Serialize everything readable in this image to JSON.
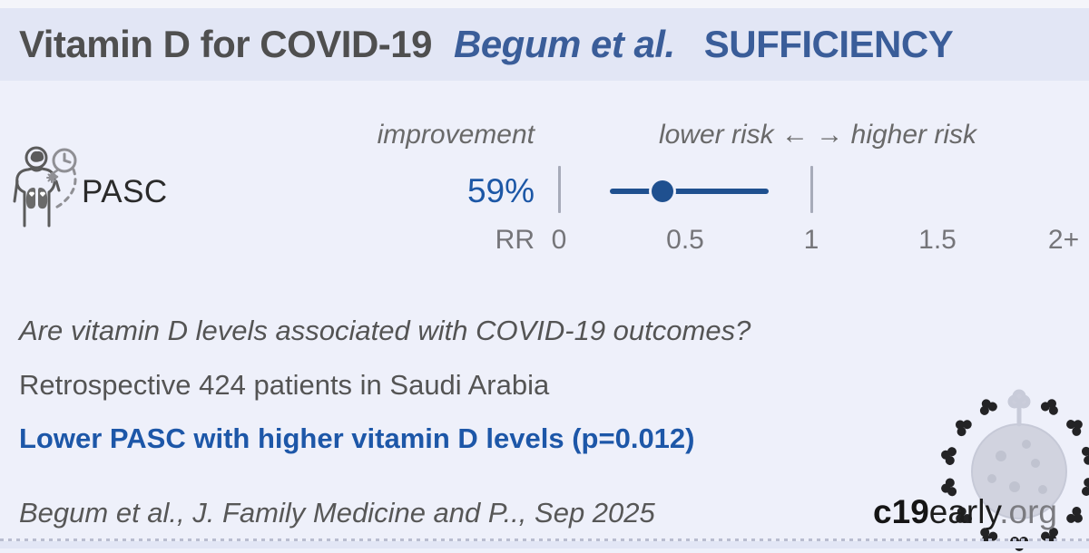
{
  "header": {
    "title": "Vitamin D for COVID-19",
    "author": "Begum et al.",
    "status": "SUFFICIENCY"
  },
  "columns": {
    "improvement": "improvement",
    "risk_scale": "lower risk ←  → higher risk"
  },
  "outcome": {
    "icon": "pasc-long-covid-icon",
    "label": "PASC",
    "improvement": "59%"
  },
  "chart_data": {
    "type": "scatter",
    "subtype": "forest-plot",
    "series": [
      {
        "name": "PASC",
        "improvement_pct": 59,
        "rr": 0.41,
        "ci_lower": 0.2,
        "ci_upper": 0.83
      }
    ],
    "xlabel": "RR",
    "x_ticks": [
      0,
      0.5,
      1,
      1.5,
      2
    ],
    "x_tick_labels": [
      "0",
      "0.5",
      "1",
      "1.5",
      "2+"
    ],
    "xlim": [
      0,
      2.1
    ],
    "reference_ticks": [
      0,
      1
    ],
    "axis_note": "lower risk ←  → higher risk",
    "point_color": "#1f508f",
    "tick_color": "#a7abb9"
  },
  "body": {
    "question": "Are vitamin D levels associated with COVID-19 outcomes?",
    "study_design": "Retrospective 424 patients in Saudi Arabia",
    "finding": "Lower PASC with higher vitamin D levels (p=0.012)"
  },
  "footer": {
    "citation": "Begum et al., J. Family Medicine and P.., Sep 2025",
    "logo": {
      "c19": "c19",
      "early": "early",
      "org": ".org"
    }
  },
  "colors": {
    "accent_blue": "#1c57a6",
    "header_blue": "#3a5d99",
    "band": "#e2e6f5",
    "background": "#eef0fa",
    "text_gray": "#545454"
  }
}
